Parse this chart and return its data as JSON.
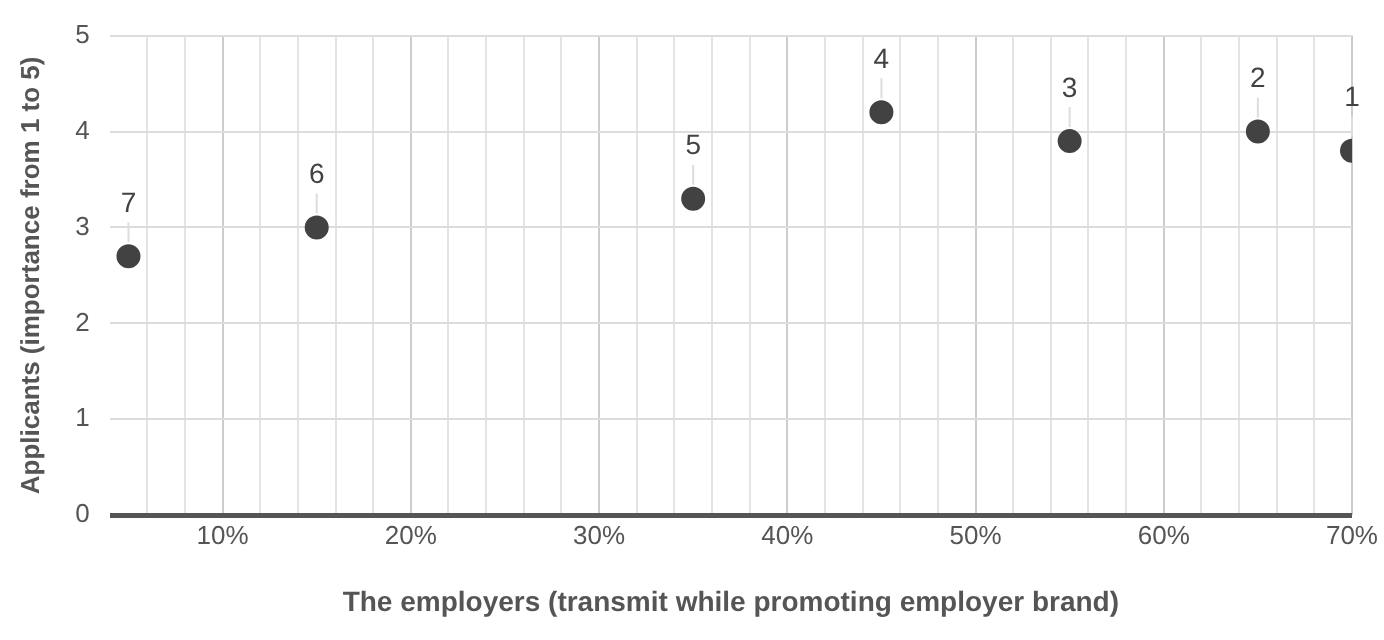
{
  "chart_data": {
    "type": "scatter",
    "xlabel": "The employers (transmit while promoting employer brand)",
    "ylabel": "Applicants (importance from 1 to 5)",
    "x": [
      5,
      15,
      35,
      45,
      55,
      65,
      70
    ],
    "values": [
      2.7,
      3.0,
      3.3,
      4.2,
      3.9,
      4.0,
      3.8
    ],
    "color": "#424242",
    "marker": "circle",
    "grid": true,
    "legend": false,
    "xlim": [
      4,
      70
    ],
    "xticks": [
      {
        "value": 6,
        "label": null
      },
      {
        "value": 8,
        "label": null
      },
      {
        "value": 10,
        "label": "10%"
      },
      {
        "value": 12,
        "label": null
      },
      {
        "value": 14,
        "label": null
      },
      {
        "value": 16,
        "label": null
      },
      {
        "value": 18,
        "label": null
      },
      {
        "value": 20,
        "label": "20%"
      },
      {
        "value": 22,
        "label": null
      },
      {
        "value": 24,
        "label": null
      },
      {
        "value": 26,
        "label": null
      },
      {
        "value": 28,
        "label": null
      },
      {
        "value": 30,
        "label": "30%"
      },
      {
        "value": 32,
        "label": null
      },
      {
        "value": 34,
        "label": null
      },
      {
        "value": 36,
        "label": null
      },
      {
        "value": 38,
        "label": null
      },
      {
        "value": 40,
        "label": "40%"
      },
      {
        "value": 42,
        "label": null
      },
      {
        "value": 44,
        "label": null
      },
      {
        "value": 46,
        "label": null
      },
      {
        "value": 48,
        "label": null
      },
      {
        "value": 50,
        "label": "50%"
      },
      {
        "value": 52,
        "label": null
      },
      {
        "value": 54,
        "label": null
      },
      {
        "value": 56,
        "label": null
      },
      {
        "value": 58,
        "label": null
      },
      {
        "value": 60,
        "label": "60%"
      },
      {
        "value": 62,
        "label": null
      },
      {
        "value": 64,
        "label": null
      },
      {
        "value": 66,
        "label": null
      },
      {
        "value": 68,
        "label": null
      },
      {
        "value": 70,
        "label": "70%"
      }
    ],
    "ylim": [
      0,
      5
    ],
    "yticks": [
      0,
      1,
      2,
      3,
      4,
      5
    ],
    "annotations": [
      {
        "text": "7",
        "x": 5,
        "y": 2.7
      },
      {
        "text": "6",
        "x": 15,
        "y": 3.0
      },
      {
        "text": "5",
        "x": 35,
        "y": 3.3
      },
      {
        "text": "4",
        "x": 45,
        "y": 4.2
      },
      {
        "text": "3",
        "x": 55,
        "y": 3.9
      },
      {
        "text": "2",
        "x": 65,
        "y": 4.0
      },
      {
        "text": "1",
        "x": 70,
        "y": 3.8
      }
    ]
  }
}
